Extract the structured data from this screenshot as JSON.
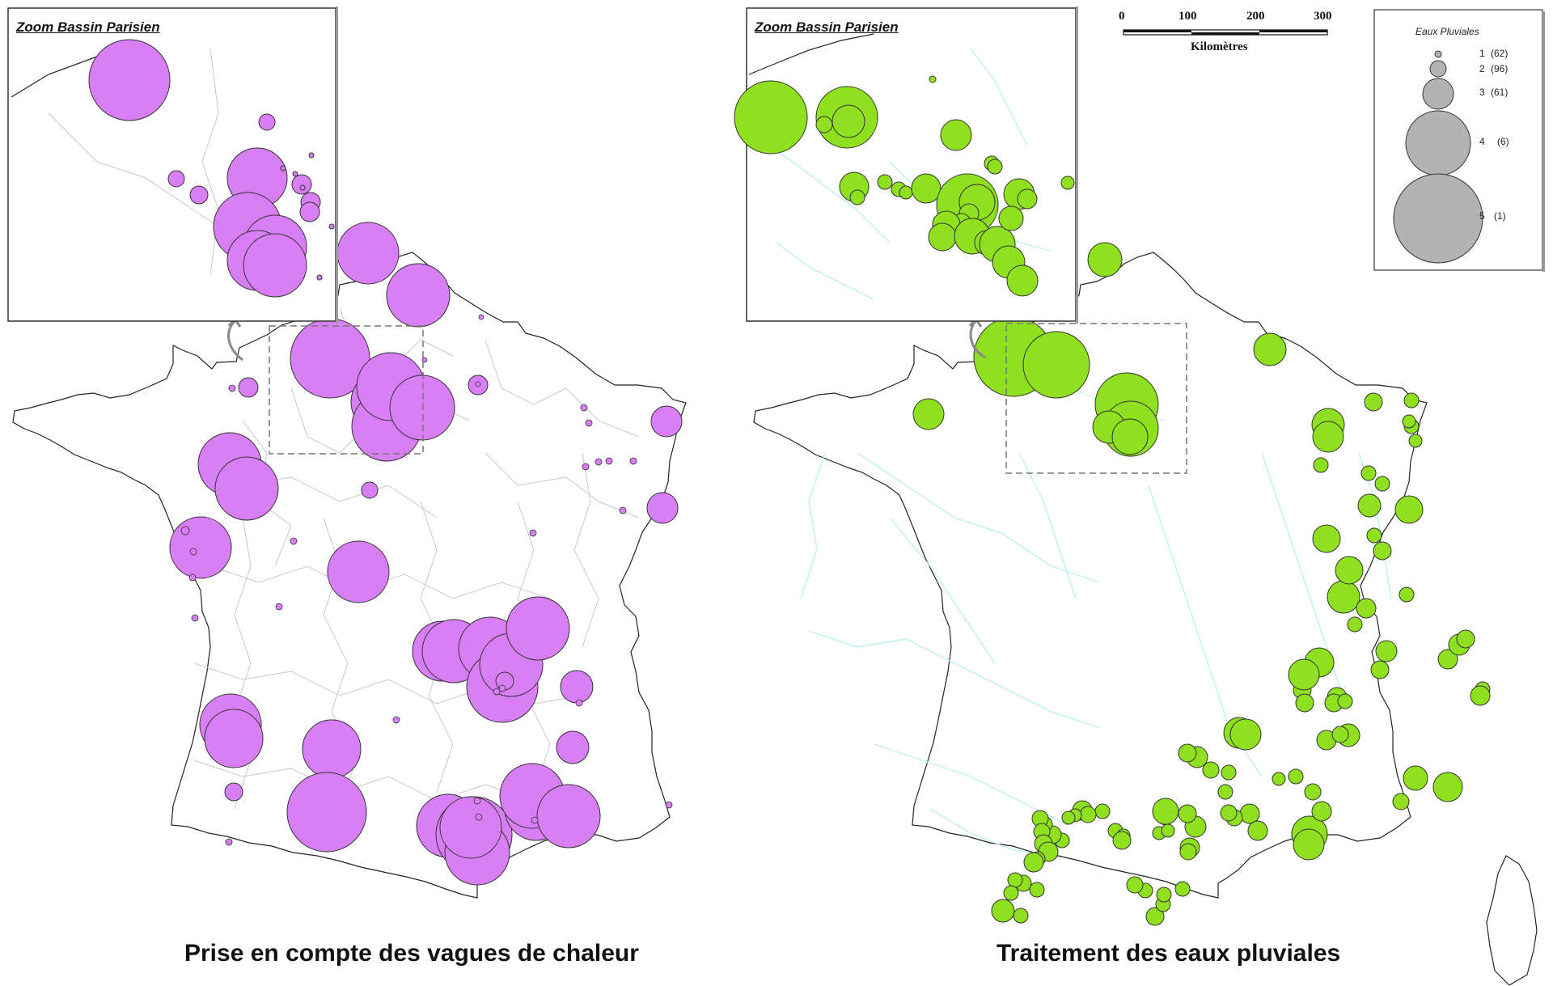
{
  "colors": {
    "heat": "#d97ff5",
    "rain": "#8fe01e",
    "legend_bubble": "#b3b3b3",
    "river": "#bfeff2",
    "border": "#222222",
    "dept": "#c8c8c8"
  },
  "left_map": {
    "caption": "Prise en compte des vagues de chaleur",
    "inset_title": "Zoom Bassin Parisien"
  },
  "right_map": {
    "caption": "Traitement des eaux pluviales",
    "inset_title": "Zoom Bassin Parisien"
  },
  "scale_bar": {
    "ticks": [
      "0",
      "100",
      "200",
      "300"
    ],
    "unit": "Kilomètres"
  },
  "legend": {
    "title": "Eaux Pluviales",
    "classes": [
      {
        "label": "1",
        "count": "(62)"
      },
      {
        "label": "2",
        "count": "(96)"
      },
      {
        "label": "3",
        "count": "(61)"
      },
      {
        "label": "4",
        "count": "(6)"
      },
      {
        "label": "5",
        "count": "(1)"
      }
    ]
  }
}
